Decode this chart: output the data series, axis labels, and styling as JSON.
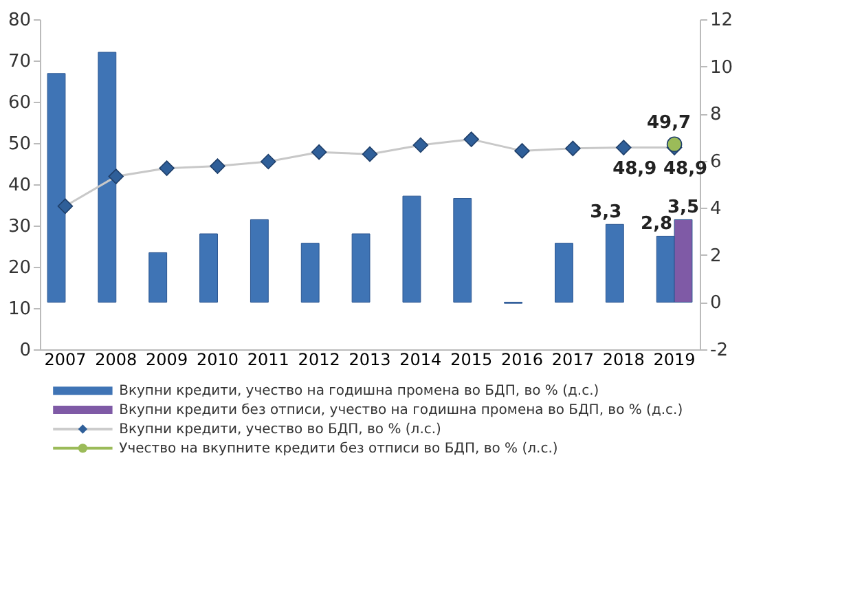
{
  "chart_data": {
    "type": "bar",
    "categories": [
      "2007",
      "2008",
      "2009",
      "2010",
      "2011",
      "2012",
      "2013",
      "2014",
      "2015",
      "2016",
      "2017",
      "2018",
      "2019"
    ],
    "series": [
      {
        "name": "Вкупни кредити, учество на годишна промена во БДП, во % (д.с.)",
        "axis": "y2",
        "color": "#3f74b5",
        "values": [
          9.7,
          10.6,
          2.1,
          2.9,
          3.5,
          2.5,
          2.9,
          4.5,
          4.4,
          -0.05,
          2.5,
          3.3,
          2.8
        ],
        "value_labels": [
          null,
          null,
          null,
          null,
          null,
          null,
          null,
          null,
          null,
          null,
          null,
          "3,3",
          "2,8"
        ]
      },
      {
        "name": "Вкупни кредити без отписи, учество на годишна промена во БДП, во % (д.с.)",
        "axis": "y2",
        "color": "#7f5aa6",
        "values": [
          null,
          null,
          null,
          null,
          null,
          null,
          null,
          null,
          null,
          null,
          null,
          null,
          3.5
        ],
        "value_labels": [
          null,
          null,
          null,
          null,
          null,
          null,
          null,
          null,
          null,
          null,
          null,
          null,
          "3,5"
        ]
      },
      {
        "name": "Вкупни кредити, учество во БДП, во % (л.с.)",
        "type": "line",
        "axis": "y",
        "color": "#2f5f99",
        "marker": "diamond",
        "values": [
          34.7,
          41.9,
          43.9,
          44.4,
          45.5,
          47.8,
          47.3,
          49.5,
          50.9,
          48.1,
          48.7,
          48.9,
          48.9
        ],
        "value_labels": [
          null,
          null,
          null,
          null,
          null,
          null,
          null,
          null,
          null,
          null,
          null,
          "48,9",
          "48,9"
        ]
      },
      {
        "name": "Учество на вкупните кредити без отписи во БДП, во % (л.с.)",
        "type": "line",
        "axis": "y",
        "color": "#9bbb59",
        "marker": "circle",
        "values": [
          null,
          null,
          null,
          null,
          null,
          null,
          null,
          null,
          null,
          null,
          null,
          null,
          49.7
        ],
        "value_labels": [
          null,
          null,
          null,
          null,
          null,
          null,
          null,
          null,
          null,
          null,
          null,
          null,
          "49,7"
        ]
      }
    ],
    "ylim": [
      0,
      80
    ],
    "yticks": [
      0,
      10,
      20,
      30,
      40,
      50,
      60,
      70,
      80
    ],
    "y2lim": [
      -2,
      12
    ],
    "y2ticks": [
      -2,
      0,
      2,
      4,
      6,
      8,
      10,
      12
    ],
    "grid": false,
    "legend": "bottom"
  }
}
